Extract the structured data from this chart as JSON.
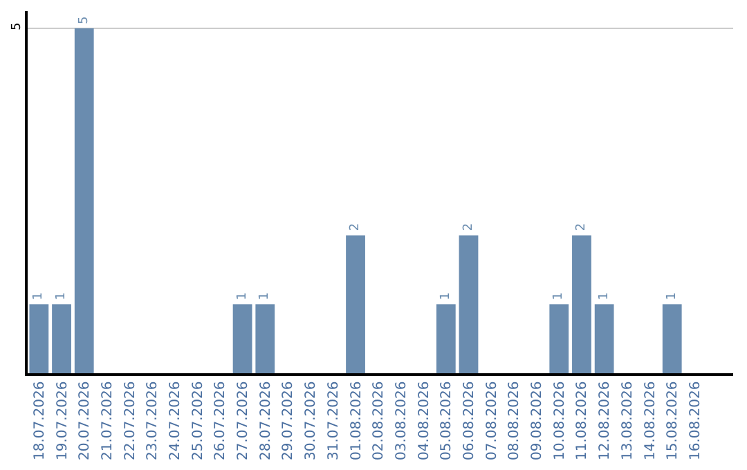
{
  "chart_data": {
    "type": "bar",
    "categories": [
      "18.07.2026",
      "19.07.2026",
      "20.07.2026",
      "21.07.2026",
      "22.07.2026",
      "23.07.2026",
      "24.07.2026",
      "25.07.2026",
      "26.07.2026",
      "27.07.2026",
      "28.07.2026",
      "29.07.2026",
      "30.07.2026",
      "31.07.2026",
      "01.08.2026",
      "02.08.2026",
      "03.08.2026",
      "04.08.2026",
      "05.08.2026",
      "06.08.2026",
      "07.08.2026",
      "08.08.2026",
      "09.08.2026",
      "10.08.2026",
      "11.08.2026",
      "12.08.2026",
      "13.08.2026",
      "14.08.2026",
      "15.08.2026",
      "16.08.2026"
    ],
    "values": [
      1,
      1,
      5,
      0,
      0,
      0,
      0,
      0,
      0,
      1,
      1,
      0,
      0,
      0,
      2,
      0,
      0,
      0,
      1,
      2,
      0,
      0,
      0,
      1,
      2,
      1,
      0,
      0,
      1,
      0
    ],
    "value_labels": [
      "1",
      "1",
      "5",
      null,
      null,
      null,
      null,
      null,
      null,
      "1",
      "1",
      null,
      null,
      null,
      "2",
      null,
      null,
      null,
      "1",
      "2",
      null,
      null,
      null,
      "1",
      "2",
      "1",
      null,
      null,
      "1",
      null
    ],
    "color": "#6a8caf",
    "ylim": [
      0,
      5.25
    ],
    "yticks": [
      5
    ],
    "grid": "y",
    "legend": false
  }
}
